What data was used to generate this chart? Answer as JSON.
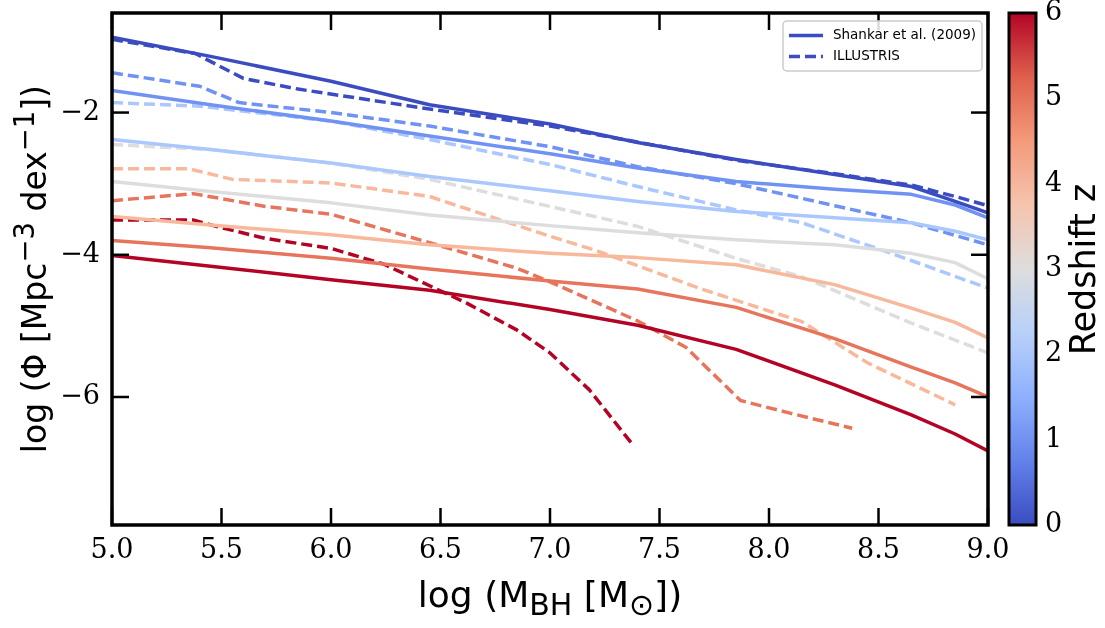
{
  "chart_data": {
    "type": "line",
    "xlabel": "log (M$_{BH}$ [M$_{⊙}$])",
    "ylabel": "log (Φ [Mpc$^{−3}$ dex$^{−1}$])",
    "clabel": "Redshift z",
    "clim": [
      0,
      6
    ],
    "cticks": [
      0,
      1,
      2,
      3,
      4,
      5,
      6
    ],
    "xlim": [
      5,
      9
    ],
    "xticks": [
      {
        "value": 5,
        "label": "5.0"
      },
      {
        "value": 5.5,
        "label": "5.5"
      },
      {
        "value": 6,
        "label": "6.0"
      },
      {
        "value": 6.5,
        "label": "6.5"
      },
      {
        "value": 7,
        "label": "7.0"
      },
      {
        "value": 7.5,
        "label": "7.5"
      },
      {
        "value": 8,
        "label": "8.0"
      },
      {
        "value": 8.5,
        "label": "8.5"
      },
      {
        "value": 9,
        "label": "9.0"
      }
    ],
    "ylim": [
      -7.8,
      -0.6
    ],
    "yticks": [
      -6,
      -4,
      -2
    ],
    "legend": "top right",
    "line_style": "solid",
    "series": [
      {
        "name": "Shankar et al. (2009)",
        "color": "#3b4cc0",
        "x": [
          5.0,
          5.45,
          6.0,
          6.45,
          7.0,
          7.4,
          7.85,
          8.3,
          8.65,
          8.85,
          9.0
        ],
        "values": [
          -0.94,
          -1.21,
          -1.56,
          -1.89,
          -2.16,
          -2.42,
          -2.66,
          -2.87,
          -3.04,
          -3.25,
          -3.41
        ]
      },
      {
        "color": "#7092f3",
        "x": [
          5.0,
          5.45,
          6.0,
          6.45,
          7.0,
          7.4,
          7.85,
          8.3,
          8.65,
          8.85,
          9.0
        ],
        "values": [
          -1.69,
          -1.89,
          -2.12,
          -2.33,
          -2.58,
          -2.78,
          -2.97,
          -3.08,
          -3.15,
          -3.3,
          -3.48
        ]
      },
      {
        "color": "#aac7fe",
        "x": [
          5.0,
          5.45,
          6.0,
          6.45,
          7.0,
          7.4,
          7.85,
          8.3,
          8.65,
          8.85,
          9.0
        ],
        "values": [
          -2.38,
          -2.52,
          -2.71,
          -2.9,
          -3.1,
          -3.25,
          -3.39,
          -3.48,
          -3.55,
          -3.67,
          -3.79
        ]
      },
      {
        "color": "#dddddd",
        "x": [
          5.0,
          5.45,
          6.0,
          6.45,
          7.0,
          7.4,
          7.85,
          8.3,
          8.65,
          8.85,
          9.0
        ],
        "values": [
          -2.97,
          -3.11,
          -3.27,
          -3.44,
          -3.59,
          -3.69,
          -3.79,
          -3.86,
          -3.98,
          -4.11,
          -4.34
        ]
      },
      {
        "color": "#f7b89c",
        "x": [
          5.0,
          5.45,
          6.0,
          6.45,
          7.0,
          7.4,
          7.85,
          8.3,
          8.65,
          8.85,
          9.0
        ],
        "values": [
          -3.46,
          -3.58,
          -3.72,
          -3.86,
          -3.98,
          -4.04,
          -4.14,
          -4.42,
          -4.75,
          -4.95,
          -5.17
        ]
      },
      {
        "color": "#e7755c",
        "x": [
          5.0,
          5.45,
          6.0,
          6.45,
          7.0,
          7.4,
          7.85,
          8.3,
          8.65,
          8.85,
          9.0
        ],
        "values": [
          -3.8,
          -3.9,
          -4.05,
          -4.2,
          -4.37,
          -4.48,
          -4.74,
          -5.18,
          -5.58,
          -5.8,
          -6.0
        ]
      },
      {
        "color": "#b40426",
        "x": [
          5.0,
          5.45,
          6.0,
          6.45,
          7.0,
          7.4,
          7.85,
          8.3,
          8.65,
          8.85,
          9.0
        ],
        "values": [
          -4.01,
          -4.16,
          -4.35,
          -4.5,
          -4.77,
          -4.99,
          -5.33,
          -5.83,
          -6.25,
          -6.52,
          -6.76
        ]
      },
      {
        "name": "ILLUSTRIS",
        "color": "#3b4cc0",
        "line_style": "dashed",
        "x": [
          5.0,
          5.38,
          5.6,
          5.85,
          6.45,
          7.0,
          7.85,
          8.3,
          8.65,
          8.85,
          9.0
        ],
        "values": [
          -0.97,
          -1.17,
          -1.52,
          -1.67,
          -1.95,
          -2.19,
          -2.67,
          -2.86,
          -3.02,
          -3.18,
          -3.31
        ]
      },
      {
        "color": "#7092f3",
        "line_style": "dashed",
        "x": [
          5.0,
          5.4,
          5.58,
          6.0,
          6.45,
          7.0,
          7.4,
          7.85,
          8.3,
          8.65,
          9.0
        ],
        "values": [
          -1.44,
          -1.63,
          -1.86,
          -2.0,
          -2.19,
          -2.48,
          -2.76,
          -3.0,
          -3.31,
          -3.55,
          -3.86
        ]
      },
      {
        "color": "#aac7fe",
        "line_style": "dashed",
        "x": [
          5.0,
          5.4,
          6.0,
          6.45,
          7.0,
          7.4,
          7.85,
          8.15,
          8.55,
          9.0
        ],
        "values": [
          -1.86,
          -1.91,
          -2.12,
          -2.38,
          -2.73,
          -3.04,
          -3.37,
          -3.55,
          -3.97,
          -4.47
        ]
      },
      {
        "color": "#dddddd",
        "line_style": "dashed",
        "x": [
          5.0,
          5.45,
          6.0,
          6.45,
          7.0,
          7.4,
          7.85,
          8.15,
          8.65,
          9.0
        ],
        "values": [
          -2.45,
          -2.52,
          -2.71,
          -2.94,
          -3.32,
          -3.6,
          -4.05,
          -4.31,
          -4.96,
          -5.38
        ]
      },
      {
        "color": "#f7b89c",
        "line_style": "dashed",
        "x": [
          5.0,
          5.35,
          5.55,
          6.0,
          6.45,
          7.0,
          7.2,
          7.7,
          8.15,
          8.45,
          8.85
        ],
        "values": [
          -2.79,
          -2.79,
          -2.94,
          -2.99,
          -3.18,
          -3.74,
          -3.93,
          -4.49,
          -4.94,
          -5.52,
          -6.11
        ]
      },
      {
        "color": "#e7755c",
        "line_style": "dashed",
        "x": [
          5.0,
          5.37,
          5.7,
          6.0,
          6.45,
          6.85,
          7.0,
          7.4,
          7.62,
          7.87,
          8.1,
          8.38
        ],
        "values": [
          -3.24,
          -3.14,
          -3.32,
          -3.43,
          -3.83,
          -4.19,
          -4.38,
          -4.93,
          -5.3,
          -6.05,
          -6.23,
          -6.44
        ]
      },
      {
        "color": "#b40426",
        "line_style": "dashed",
        "x": [
          5.0,
          5.37,
          5.45,
          5.7,
          6.0,
          6.24,
          6.46,
          6.62,
          6.85,
          7.0,
          7.18,
          7.38
        ],
        "values": [
          -3.51,
          -3.51,
          -3.58,
          -3.77,
          -3.91,
          -4.13,
          -4.45,
          -4.68,
          -5.06,
          -5.38,
          -5.9,
          -6.68
        ]
      }
    ]
  }
}
